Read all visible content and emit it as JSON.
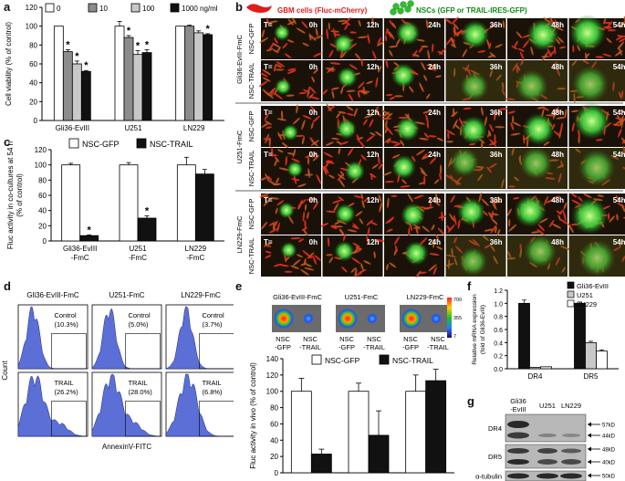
{
  "panel_letters": {
    "a": "a",
    "b": "b",
    "c": "c",
    "d": "d",
    "e": "e",
    "f": "f",
    "g": "g"
  },
  "panels": {
    "a": {
      "chart_data": {
        "type": "bar",
        "ylabel": "Cell viability (% of control)",
        "ylim": [
          0,
          120
        ],
        "yticks": [
          "0",
          "20",
          "40",
          "60",
          "80",
          "100",
          "120"
        ],
        "categories": [
          "Gli36-EvIII",
          "U251",
          "LN229"
        ],
        "legend": [
          "0",
          "10",
          "100",
          "1000 ng/ml"
        ],
        "series": [
          {
            "name": "0",
            "color": "#ffffff",
            "values": [
              100,
              100,
              100
            ]
          },
          {
            "name": "10",
            "color": "#8c8c8c",
            "values": [
              73,
              88,
              100
            ]
          },
          {
            "name": "100",
            "color": "#c8c8c8",
            "values": [
              60,
              70,
              93
            ]
          },
          {
            "name": "1000 ng/ml",
            "color": "#111111",
            "values": [
              52,
              72,
              91
            ]
          }
        ],
        "significance": "*"
      }
    },
    "b": {
      "legend_gbm": "GBM cells (Fluc-mCherry)",
      "legend_nsc": "NSCs (GFP or TRAIL-IRES-GFP)",
      "timepoints": [
        "0h",
        "12h",
        "24h",
        "36h",
        "48h",
        "54h"
      ],
      "t_label": "T=",
      "groups": [
        {
          "name": "Gli36-EvIII-FmC",
          "rows": [
            "NSC-GFP",
            "NSC-TRAIL"
          ]
        },
        {
          "name": "U251-FmC",
          "rows": [
            "NSC-GFP",
            "NSC-TRAIL"
          ]
        },
        {
          "name": "LN229-FmC",
          "rows": [
            "NSC-GFP",
            "NSC-TRAIL"
          ]
        }
      ]
    },
    "c": {
      "chart_data": {
        "type": "bar",
        "ylabel": "Fluc activity in co-cultures at 54 h (% of control)",
        "ylim": [
          0,
          120
        ],
        "yticks": [
          "0",
          "20",
          "40",
          "60",
          "80",
          "100",
          "120"
        ],
        "categories": [
          "Gli36-EvIII -FmC",
          "U251 -FmC",
          "LN229 -FmC"
        ],
        "category_lines": [
          [
            "Gli36-EvIII",
            "-FmC"
          ],
          [
            "U251",
            "-FmC"
          ],
          [
            "LN229",
            "-FmC"
          ]
        ],
        "series": [
          {
            "name": "NSC-GFP",
            "color": "#ffffff",
            "values": [
              100,
              100,
              100
            ]
          },
          {
            "name": "NSC-TRAIL",
            "color": "#111111",
            "values": [
              7,
              30,
              88
            ]
          }
        ],
        "significance": "*"
      }
    },
    "d": {
      "columns": [
        "Gli36-EvIII-FmC",
        "U251-FmC",
        "LN229-FmC"
      ],
      "xlabel": "AnnexinV-FITC",
      "ylabel": "Count",
      "control_label": "Control",
      "trail_label": "TRAIL",
      "control_values": [
        "(10.3%)",
        "(5.0%)",
        "(3.7%)"
      ],
      "trail_values": [
        "(26.2%)",
        "(28.0%)",
        "(6.8%)"
      ]
    },
    "e": {
      "lines": [
        "Gli36-EvIII-FmC",
        "U251-FmC",
        "LN229-FmC"
      ],
      "image_col_labels": [
        [
          "NSC",
          "-GFP"
        ],
        [
          "NSC",
          "-TRAIL"
        ]
      ],
      "colorbar_ticks": [
        "700",
        "355",
        "7"
      ],
      "chart_data": {
        "type": "bar",
        "ylabel": "Fluc activity in vivo (% of control)",
        "ylim": [
          0,
          140
        ],
        "yticks": [
          "0",
          "20",
          "40",
          "60",
          "80",
          "100",
          "120",
          "140"
        ],
        "categories": [
          "Gli36-EvIII-FmC",
          "U251-FmC",
          "LN229-FmC"
        ],
        "series": [
          {
            "name": "NSC-GFP",
            "color": "#ffffff",
            "values": [
              100,
              100,
              100
            ]
          },
          {
            "name": "NSC-TRAIL",
            "color": "#111111",
            "values": [
              23,
              46,
              113
            ]
          }
        ]
      }
    },
    "f": {
      "chart_data": {
        "type": "bar",
        "ylabel": "Relative mRNA expression (fold of Gli36-EvIII)",
        "ylim": [
          0,
          1.2
        ],
        "yticks": [
          "0.0",
          "0.2",
          "0.4",
          "0.6",
          "0.8",
          "1.0",
          "1.2"
        ],
        "categories": [
          "DR4",
          "DR5"
        ],
        "series": [
          {
            "name": "Gli36-EvIII",
            "color": "#111111",
            "values": [
              1.0,
              1.0
            ]
          },
          {
            "name": "U251",
            "color": "#c8c8c8",
            "values": [
              0.02,
              0.4
            ]
          },
          {
            "name": "LN229",
            "color": "#ffffff",
            "values": [
              0.03,
              0.27
            ]
          }
        ]
      }
    },
    "g": {
      "lanes": [
        "Gli36 -EvIII",
        "U251",
        "LN229"
      ],
      "rows": [
        "DR4",
        "DR5",
        "α-tubulin"
      ],
      "markers": [
        "57kD",
        "44kD",
        "48kD",
        "40kD",
        "50kD"
      ]
    }
  }
}
